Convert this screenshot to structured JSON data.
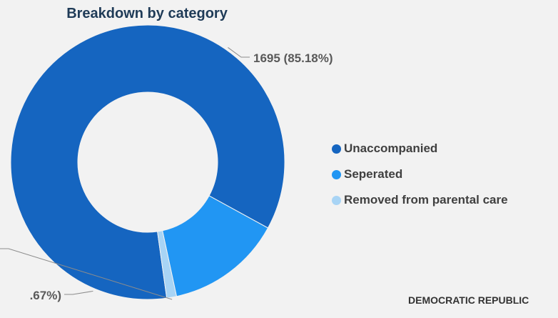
{
  "chart_data": {
    "type": "pie",
    "title": "Breakdown by category",
    "categories": [
      "Unaccompanied",
      "Seperated",
      "Removed from parental care"
    ],
    "values": [
      1695,
      272,
      23
    ],
    "labels": [
      "1695 (85.18%)",
      ".67%)",
      ""
    ],
    "colors": [
      "#1565c0",
      "#2196f3",
      "#a8d4f5"
    ],
    "legend": "right",
    "hole": true
  },
  "footer": {
    "text": "DEMOCRATIC REPUBLIC"
  }
}
